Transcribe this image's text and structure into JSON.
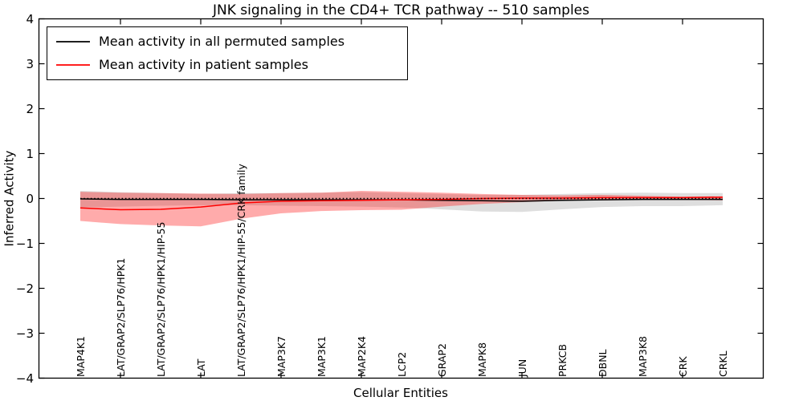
{
  "title": "JNK signaling in the CD4+ TCR pathway -- 510 samples",
  "legend": {
    "items": [
      {
        "label": "Mean activity in all permuted samples",
        "color": "#000000"
      },
      {
        "label": "Mean activity in patient samples",
        "color": "#ff0000"
      }
    ]
  },
  "chart_data": {
    "type": "line",
    "title": "JNK signaling in the CD4+ TCR pathway -- 510 samples",
    "xlabel": "Cellular Entities",
    "ylabel": "Inferred Activity",
    "ylim": [
      -4,
      4
    ],
    "grid": false,
    "legend_position": "upper left",
    "yticks": [
      {
        "v": 4,
        "label": "4"
      },
      {
        "v": 3,
        "label": "3"
      },
      {
        "v": 2,
        "label": "2"
      },
      {
        "v": 1,
        "label": "1"
      },
      {
        "v": 0,
        "label": "0"
      },
      {
        "v": -1,
        "label": "−1"
      },
      {
        "v": -2,
        "label": "−2"
      },
      {
        "v": -3,
        "label": "−3"
      },
      {
        "v": -4,
        "label": "−4"
      }
    ],
    "categories": [
      "MAP4K1",
      "LAT/GRAP2/SLP76/HPK1",
      "LAT/GRAP2/SLP76/HPK1/HIP-55",
      "LAT",
      "LAT/GRAP2/SLP76/HPK1/HIP-55/CRK family",
      "MAP3K7",
      "MAP3K1",
      "MAP2K4",
      "LCP2",
      "GRAP2",
      "MAPK8",
      "JUN",
      "PRKCB",
      "DBNL",
      "MAP3K8",
      "CRK",
      "CRKL"
    ],
    "series": [
      {
        "name": "Mean activity in all permuted samples",
        "color": "#000000",
        "line_width": 1.5,
        "values": [
          -0.01,
          -0.02,
          -0.02,
          -0.02,
          -0.03,
          -0.03,
          -0.03,
          -0.03,
          -0.03,
          -0.04,
          -0.05,
          -0.06,
          -0.04,
          -0.03,
          -0.02,
          -0.02,
          -0.02
        ],
        "band_top": [
          0.17,
          0.14,
          0.12,
          0.1,
          0.12,
          0.12,
          0.13,
          0.14,
          0.12,
          0.1,
          0.08,
          0.08,
          0.1,
          0.12,
          0.13,
          0.12,
          0.12
        ],
        "band_bottom": [
          -0.2,
          -0.18,
          -0.16,
          -0.15,
          -0.15,
          -0.16,
          -0.17,
          -0.18,
          -0.2,
          -0.24,
          -0.29,
          -0.3,
          -0.24,
          -0.19,
          -0.17,
          -0.17,
          -0.15
        ],
        "band_fill": "rgba(0,0,0,0.13)"
      },
      {
        "name": "Mean activity in patient samples",
        "color": "#ff0000",
        "line_width": 1.5,
        "values": [
          -0.21,
          -0.25,
          -0.24,
          -0.19,
          -0.1,
          -0.06,
          -0.05,
          -0.04,
          -0.03,
          -0.02,
          0.0,
          0.01,
          0.01,
          0.02,
          0.02,
          0.02,
          0.03
        ],
        "band_top": [
          0.15,
          0.13,
          0.12,
          0.11,
          0.1,
          0.12,
          0.13,
          0.17,
          0.15,
          0.13,
          0.1,
          0.08,
          0.07,
          0.08,
          0.06,
          0.04,
          0.05
        ],
        "band_bottom": [
          -0.5,
          -0.57,
          -0.6,
          -0.62,
          -0.45,
          -0.33,
          -0.28,
          -0.26,
          -0.25,
          -0.18,
          -0.12,
          -0.08,
          -0.05,
          -0.04,
          -0.03,
          -0.03,
          -0.04
        ],
        "band_fill": "rgba(255,0,0,0.33)"
      }
    ],
    "reference_line": {
      "y": 0,
      "style": "dotted",
      "color": "#000000"
    }
  }
}
